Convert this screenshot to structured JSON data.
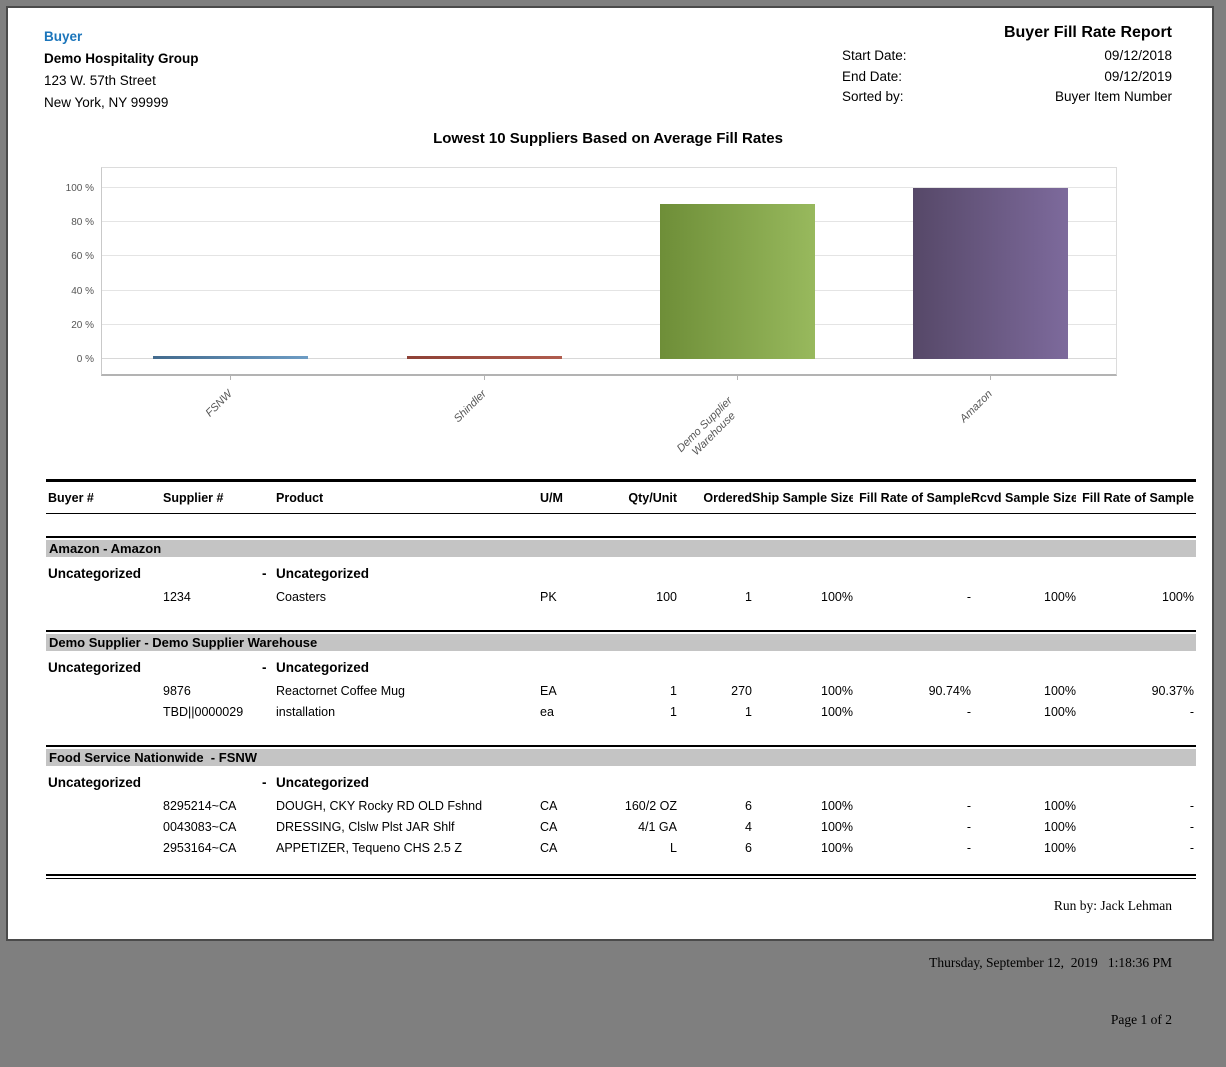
{
  "header": {
    "buyer_label": "Buyer",
    "company": {
      "name": "Demo Hospitality Group",
      "address_line1": "123 W. 57th Street",
      "address_line2": "New York, NY 99999"
    },
    "report_title": "Buyer Fill Rate Report",
    "fields": [
      {
        "label": "Start Date:",
        "value": "09/12/2018"
      },
      {
        "label": "End Date:",
        "value": "09/12/2019"
      },
      {
        "label": "Sorted by:",
        "value": "Buyer Item Number"
      }
    ]
  },
  "chart_data": {
    "type": "bar",
    "title": "Lowest 10 Suppliers Based on Average Fill Rates",
    "categories": [
      "FSNW",
      "Shindler",
      "Demo Supplier Warehouse",
      "Amazon"
    ],
    "values": [
      0.5,
      0.5,
      90.37,
      100
    ],
    "ylabel": "",
    "xlabel": "",
    "ylim": [
      0,
      100
    ],
    "ytick_labels": [
      "0 %",
      "20 %",
      "40 %",
      "60 %",
      "80 %",
      "100 %"
    ],
    "grid": true,
    "legend": false,
    "bar_colors": [
      [
        "#436b8e",
        "#6d9cc4"
      ],
      [
        "#8e4136",
        "#b05c4e"
      ],
      [
        "#6e8e38",
        "#98b95d"
      ],
      [
        "#564868",
        "#7d6a9c"
      ]
    ]
  },
  "table": {
    "columns": [
      "Buyer #",
      "Supplier #",
      "Product",
      "U/M",
      "Qty/Unit",
      "Ordered",
      "Ship Sample Size",
      "Fill Rate of Sample",
      "Rcvd Sample Size",
      "Fill Rate of Sample"
    ],
    "sections": [
      {
        "title": "Amazon - Amazon",
        "groups": [
          {
            "buyer_category": "Uncategorized",
            "separator": "-",
            "supplier_category": "Uncategorized",
            "rows": [
              [
                "",
                "1234",
                "Coasters",
                "PK",
                "100",
                "1",
                "100%",
                "-",
                "100%",
                "100%"
              ]
            ]
          }
        ]
      },
      {
        "title": "Demo Supplier - Demo Supplier Warehouse",
        "groups": [
          {
            "buyer_category": "Uncategorized",
            "separator": "-",
            "supplier_category": "Uncategorized",
            "rows": [
              [
                "",
                "9876",
                "Reactornet Coffee Mug",
                "EA",
                "1",
                "270",
                "100%",
                "90.74%",
                "100%",
                "90.37%"
              ],
              [
                "",
                "TBD||0000029",
                "installation",
                "ea",
                "1",
                "1",
                "100%",
                "-",
                "100%",
                "-"
              ]
            ]
          }
        ]
      },
      {
        "title": "Food Service Nationwide  - FSNW",
        "groups": [
          {
            "buyer_category": "Uncategorized",
            "separator": "-",
            "supplier_category": "Uncategorized",
            "rows": [
              [
                "",
                "8295214~CA",
                "DOUGH, CKY Rocky RD OLD Fshnd",
                "CA",
                "160/2 OZ",
                "6",
                "100%",
                "-",
                "100%",
                "-"
              ],
              [
                "",
                "0043083~CA",
                "DRESSING, Clslw Plst JAR Shlf",
                "CA",
                "4/1 GA",
                "4",
                "100%",
                "-",
                "100%",
                "-"
              ],
              [
                "",
                "2953164~CA",
                "APPETIZER, Tequeno CHS 2.5 Z",
                "CA",
                "L",
                "6",
                "100%",
                "-",
                "100%",
                "-"
              ]
            ]
          }
        ]
      }
    ]
  },
  "footer": {
    "run_by": "Run by: Jack Lehman",
    "datetime": "Thursday, September 12,  2019   1:18:36 PM",
    "page": "Page 1 of 2"
  },
  "colors": {
    "accent_blue": "#1b75bb",
    "section_band": "#c4c4c4",
    "page_frame": "#7f7f7f"
  }
}
